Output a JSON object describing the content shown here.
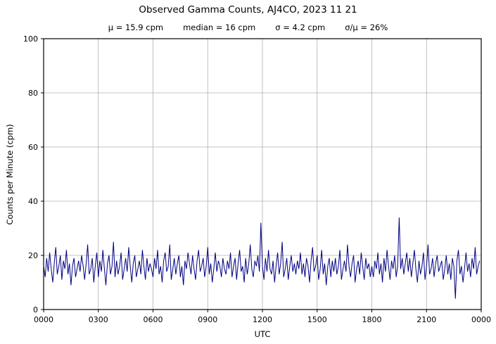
{
  "title": "Observed Gamma Counts, AJ4CO, 2023 11 21",
  "stats": {
    "mu": "μ = 15.9 cpm",
    "median": "median = 16 cpm",
    "sigma": "σ = 4.2 cpm",
    "sigma_over_mu": "σ/μ = 26%"
  },
  "chart_data": {
    "type": "line",
    "title": "Observed Gamma Counts, AJ4CO, 2023 11 21",
    "subtitle_stats": {
      "mean_cpm": 15.9,
      "median_cpm": 16,
      "sigma_cpm": 4.2,
      "sigma_over_mu_pct": 26
    },
    "xlabel": "UTC",
    "ylabel": "Counts per Minute (cpm)",
    "xtick_labels": [
      "0000",
      "0300",
      "0600",
      "0900",
      "1200",
      "1500",
      "1800",
      "2100",
      "0000"
    ],
    "ytick_values": [
      0,
      20,
      40,
      60,
      80,
      100
    ],
    "ylim": [
      0,
      100
    ],
    "x_total_minutes": 1440,
    "x_step_minutes": 5,
    "grid": true,
    "grid_color": "#b0b0b0",
    "line_color": "#000080",
    "values": [
      16,
      12,
      19,
      14,
      21,
      15,
      10,
      17,
      23,
      13,
      16,
      20,
      11,
      18,
      15,
      22,
      13,
      17,
      9,
      16,
      19,
      12,
      15,
      18,
      14,
      20,
      16,
      11,
      17,
      24,
      13,
      15,
      19,
      10,
      16,
      21,
      12,
      18,
      14,
      22,
      15,
      9,
      17,
      20,
      13,
      16,
      25,
      12,
      18,
      13,
      16,
      21,
      11,
      15,
      19,
      14,
      23,
      16,
      10,
      17,
      20,
      12,
      15,
      18,
      13,
      22,
      16,
      11,
      19,
      14,
      17,
      15,
      12,
      19,
      15,
      22,
      13,
      16,
      10,
      18,
      21,
      14,
      16,
      24,
      11,
      15,
      19,
      13,
      17,
      20,
      12,
      16,
      9,
      18,
      15,
      21,
      17,
      13,
      20,
      15,
      11,
      18,
      22,
      14,
      16,
      19,
      12,
      16,
      23,
      13,
      17,
      10,
      15,
      21,
      14,
      18,
      16,
      12,
      19,
      15,
      13,
      18,
      15,
      21,
      12,
      16,
      19,
      11,
      17,
      22,
      14,
      16,
      10,
      19,
      13,
      17,
      24,
      15,
      12,
      18,
      16,
      20,
      14,
      32,
      16,
      11,
      19,
      14,
      22,
      15,
      13,
      18,
      10,
      16,
      21,
      13,
      17,
      25,
      12,
      15,
      19,
      11,
      16,
      20,
      14,
      17,
      13,
      18,
      15,
      21,
      13,
      17,
      12,
      19,
      16,
      10,
      18,
      23,
      14,
      16,
      20,
      11,
      15,
      22,
      13,
      17,
      9,
      16,
      19,
      12,
      18,
      14,
      19,
      13,
      16,
      22,
      11,
      15,
      18,
      14,
      24,
      16,
      12,
      17,
      20,
      10,
      15,
      18,
      13,
      21,
      16,
      11,
      19,
      15,
      17,
      12,
      16,
      12,
      18,
      15,
      21,
      13,
      17,
      10,
      19,
      14,
      22,
      16,
      11,
      18,
      15,
      20,
      12,
      16,
      34,
      15,
      19,
      13,
      17,
      21,
      14,
      19,
      12,
      17,
      22,
      15,
      10,
      18,
      13,
      16,
      21,
      11,
      16,
      24,
      13,
      15,
      19,
      12,
      17,
      20,
      14,
      16,
      18,
      11,
      15,
      20,
      13,
      17,
      11,
      19,
      16,
      4,
      18,
      22,
      13,
      16,
      10,
      15,
      21,
      14,
      17,
      12,
      19,
      15,
      23,
      13,
      16,
      18
    ]
  }
}
